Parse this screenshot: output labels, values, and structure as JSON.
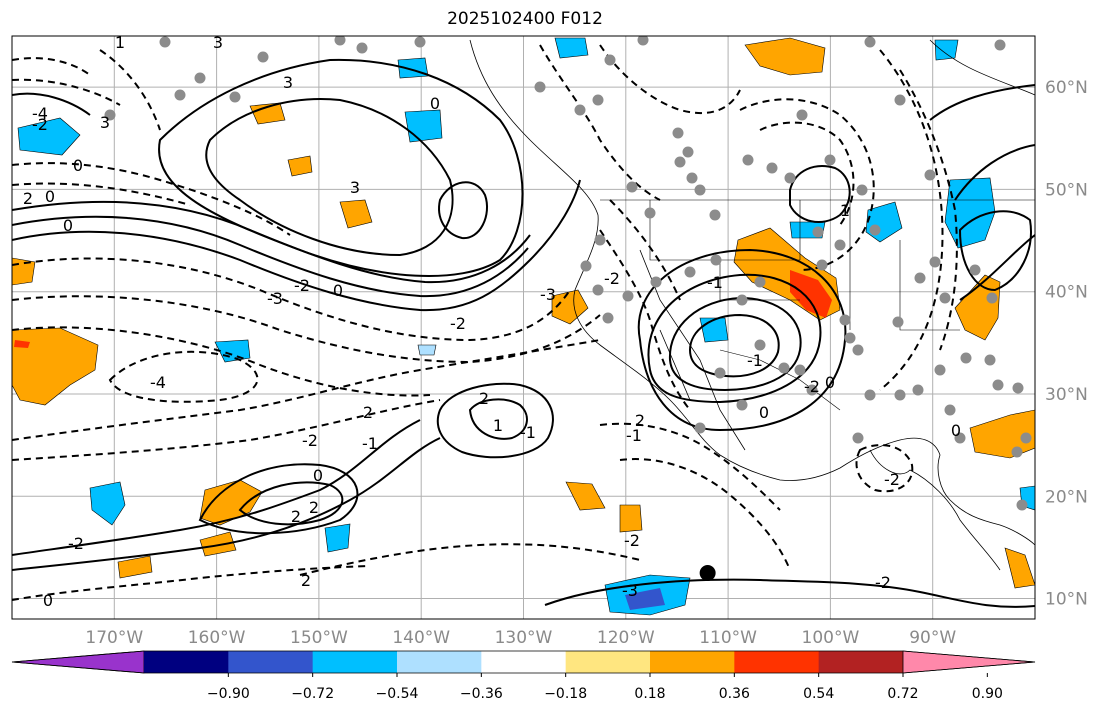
{
  "title": "2025102400 F012",
  "map": {
    "lon_range": [
      -180,
      -80
    ],
    "lat_range": [
      8,
      65
    ],
    "lat_ticks": [
      "60°N",
      "50°N",
      "40°N",
      "30°N",
      "20°N",
      "10°N"
    ],
    "lon_ticks": [
      "170°W",
      "160°W",
      "150°W",
      "140°W",
      "130°W",
      "120°W",
      "110°W",
      "100°W",
      "90°W"
    ],
    "gridlines": true,
    "contour_labels": [
      "1",
      "3",
      "-4",
      "3",
      "0",
      "-2",
      "0",
      "3",
      "3",
      "2",
      "0",
      "-3",
      "-2",
      "0",
      "-4",
      "-2",
      "0",
      "-1",
      "2",
      "2",
      "-2",
      "2",
      "-3",
      "2",
      "1",
      "-1",
      "2",
      "0",
      "-3",
      "-1",
      "-2",
      "-2",
      "-2",
      "0",
      "0",
      "-2",
      "0",
      "-1",
      "1",
      "-2",
      "-1",
      "-2",
      "2",
      "0"
    ],
    "marker": {
      "lon": -112,
      "lat": 12.5,
      "color": "#000000"
    },
    "station_dot_color": "#8c8c8c"
  },
  "colorbar": {
    "ticks": [
      "−0.90",
      "−0.72",
      "−0.54",
      "−0.36",
      "−0.18",
      "0.18",
      "0.36",
      "0.54",
      "0.72",
      "0.90"
    ],
    "colors": [
      "#9933cc",
      "#000080",
      "#3355cc",
      "#00bfff",
      "#aee0ff",
      "#ffffff",
      "#ffe680",
      "#ffa500",
      "#ff3300",
      "#b22222",
      "#ff88aa"
    ],
    "extend": "both"
  }
}
